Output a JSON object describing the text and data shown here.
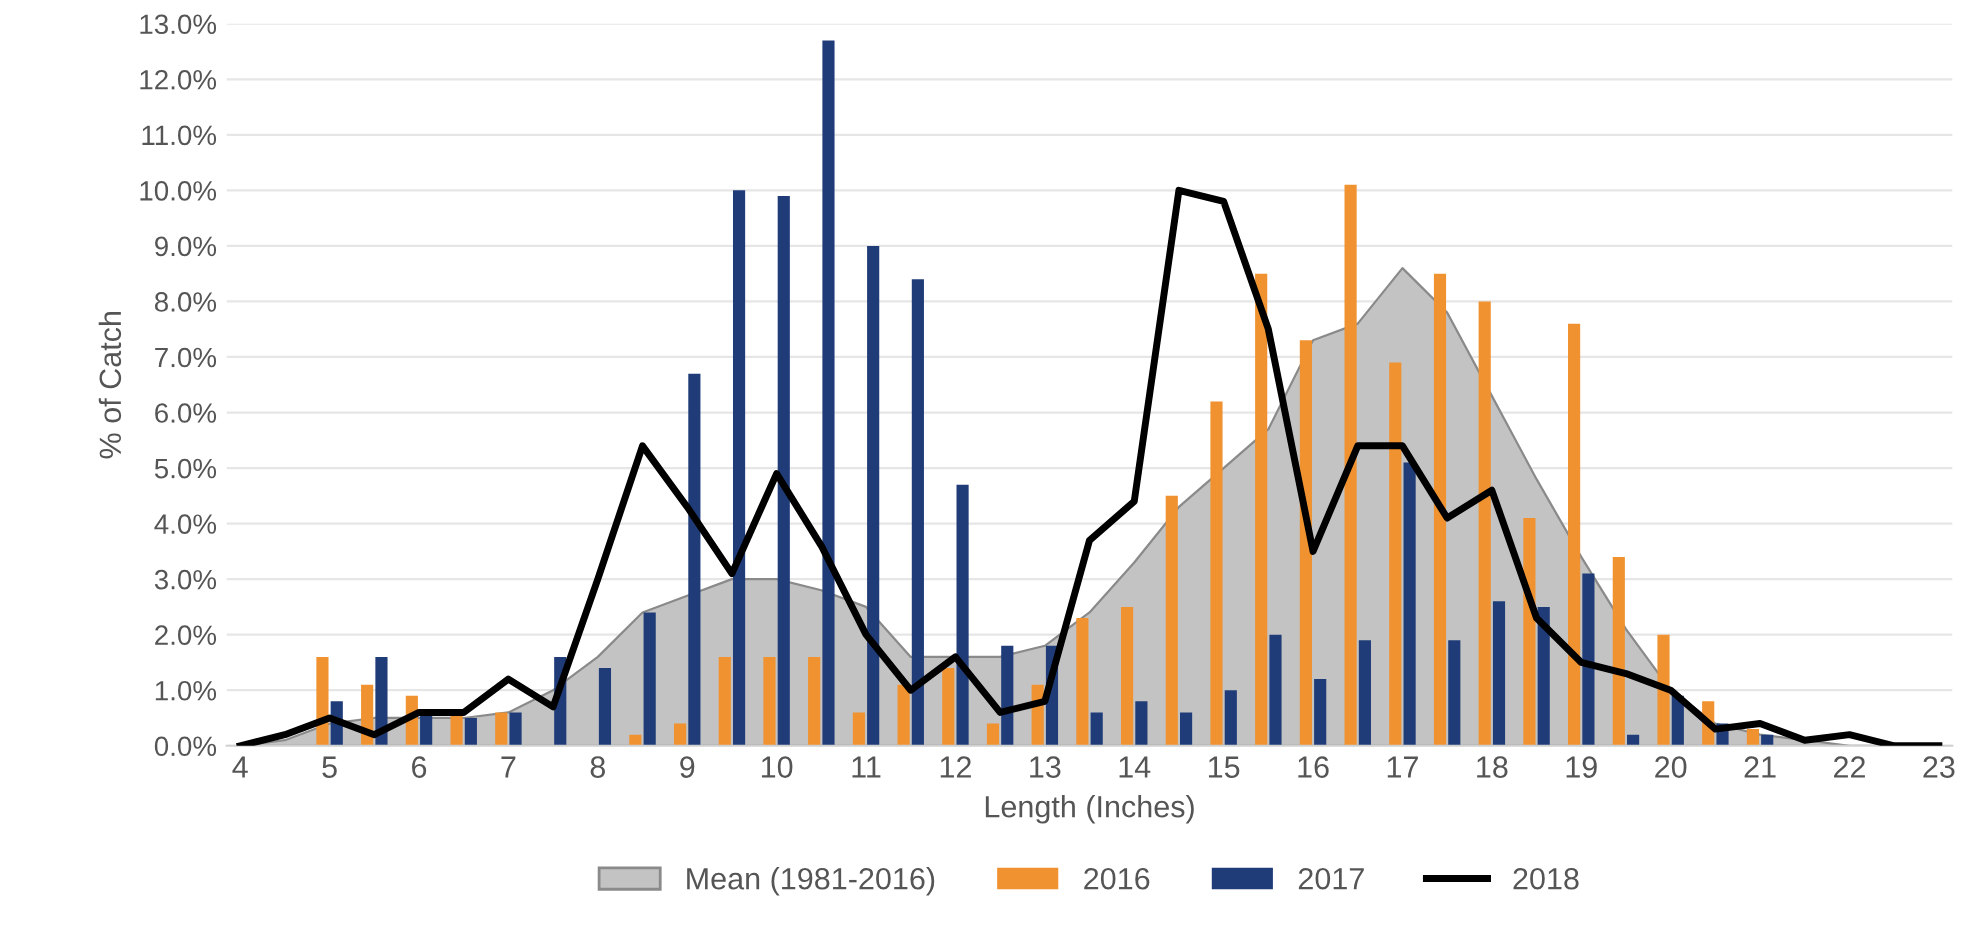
{
  "chart_data": {
    "type": "bar",
    "xlabel": "Length (Inches)",
    "ylabel": "% of Catch",
    "categories": [
      "4",
      null,
      "5",
      null,
      "6",
      null,
      "7",
      null,
      "8",
      null,
      "9",
      null,
      "10",
      null,
      "11",
      null,
      "12",
      null,
      "13",
      null,
      "14",
      null,
      "15",
      null,
      "16",
      null,
      "17",
      null,
      "18",
      null,
      "19",
      null,
      "20",
      null,
      "21",
      null,
      "22",
      null,
      "23"
    ],
    "series": [
      {
        "name": "Mean (1981-2016)",
        "type": "area",
        "color": "#c3c3c3",
        "values": [
          0,
          0.1,
          0.4,
          0.5,
          0.5,
          0.5,
          0.6,
          1.0,
          1.6,
          2.4,
          2.7,
          3.0,
          3.0,
          2.8,
          2.5,
          1.6,
          1.6,
          1.6,
          1.8,
          2.4,
          3.3,
          4.3,
          5.0,
          5.7,
          7.3,
          7.6,
          8.6,
          7.8,
          6.3,
          4.8,
          3.4,
          2.1,
          1.0,
          0.4,
          0.2,
          0.1,
          0,
          0,
          0
        ]
      },
      {
        "name": "2016",
        "color": "#f0922f",
        "values": [
          0,
          0,
          1.6,
          1.1,
          0.9,
          0.6,
          0.6,
          0,
          0,
          0.2,
          0.4,
          1.6,
          1.6,
          1.6,
          0.6,
          1.1,
          1.4,
          0.4,
          1.1,
          2.3,
          2.5,
          4.5,
          6.2,
          8.5,
          7.3,
          10.1,
          6.9,
          8.5,
          8.0,
          4.1,
          7.6,
          3.4,
          2.0,
          0.8,
          0.3,
          0,
          0,
          0,
          0
        ]
      },
      {
        "name": "2017",
        "color": "#1f3c78",
        "values": [
          0,
          0,
          0.8,
          1.6,
          0.6,
          0.5,
          0.6,
          1.6,
          1.4,
          2.4,
          6.7,
          10.0,
          9.9,
          12.7,
          9.0,
          8.4,
          4.7,
          1.8,
          1.8,
          0.6,
          0.8,
          0.6,
          1.0,
          2.0,
          1.2,
          1.9,
          5.1,
          1.9,
          2.6,
          2.5,
          3.1,
          0.2,
          0.9,
          0.4,
          0.2,
          0,
          0,
          0,
          0
        ]
      },
      {
        "name": "2018",
        "type": "line",
        "color": "#000000",
        "values": [
          0,
          0.2,
          0.5,
          0.2,
          0.6,
          0.6,
          1.2,
          0.7,
          3.0,
          5.4,
          4.3,
          3.1,
          4.9,
          3.6,
          2.0,
          1.0,
          1.6,
          0.6,
          0.8,
          3.7,
          4.4,
          10.0,
          9.8,
          7.5,
          3.5,
          5.4,
          5.4,
          4.1,
          4.6,
          2.3,
          1.5,
          1.3,
          1.0,
          0.3,
          0.4,
          0.1,
          0.2,
          0,
          0
        ]
      }
    ],
    "ylim": [
      0,
      13
    ],
    "yticks": [
      {
        "value": 0,
        "label": "0.0%"
      },
      {
        "value": 1,
        "label": "1.0%"
      },
      {
        "value": 2,
        "label": "2.0%"
      },
      {
        "value": 3,
        "label": "3.0%"
      },
      {
        "value": 4,
        "label": "4.0%"
      },
      {
        "value": 5,
        "label": "5.0%"
      },
      {
        "value": 6,
        "label": "6.0%"
      },
      {
        "value": 7,
        "label": "7.0%"
      },
      {
        "value": 8,
        "label": "8.0%"
      },
      {
        "value": 9,
        "label": "9.0%"
      },
      {
        "value": 10,
        "label": "10.0%"
      },
      {
        "value": 11,
        "label": "11.0%"
      },
      {
        "value": 12,
        "label": "12.0%"
      },
      {
        "value": 13,
        "label": "13.0%"
      }
    ],
    "grid": "y",
    "legend": "bottom"
  }
}
